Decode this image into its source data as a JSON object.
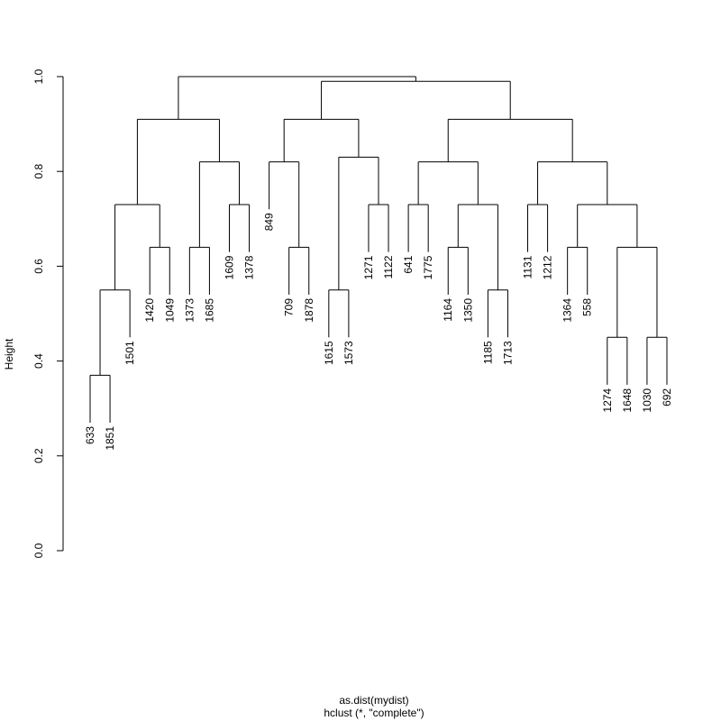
{
  "chart_data": {
    "type": "dendrogram",
    "y_label": "Height",
    "x_label": "as.dist(mydist)",
    "subtitle": "hclust (*, \"complete\")",
    "ylim": [
      0,
      1
    ],
    "yticks": [
      {
        "value": 0,
        "label": "0.0"
      },
      {
        "value": 0.2,
        "label": "0.2"
      },
      {
        "value": 0.4,
        "label": "0.4"
      },
      {
        "value": 0.6,
        "label": "0.6"
      },
      {
        "value": 0.8,
        "label": "0.8"
      },
      {
        "value": 1,
        "label": "1.0"
      }
    ],
    "color": "#000000",
    "tree": {
      "height": 1.0,
      "children": [
        {
          "height": 0.91,
          "children": [
            {
              "height": 0.73,
              "children": [
                {
                  "height": 0.55,
                  "children": [
                    {
                      "height": 0.37,
                      "children": [
                        {
                          "label": "633"
                        },
                        {
                          "label": "1851"
                        }
                      ]
                    },
                    {
                      "label": "1501"
                    }
                  ]
                },
                {
                  "height": 0.64,
                  "children": [
                    {
                      "label": "1420"
                    },
                    {
                      "label": "1049"
                    }
                  ]
                }
              ]
            },
            {
              "height": 0.82,
              "children": [
                {
                  "height": 0.64,
                  "children": [
                    {
                      "label": "1373"
                    },
                    {
                      "label": "1685"
                    }
                  ]
                },
                {
                  "height": 0.73,
                  "children": [
                    {
                      "label": "1609"
                    },
                    {
                      "label": "1378"
                    }
                  ]
                }
              ]
            }
          ]
        },
        {
          "height": 0.99,
          "children": [
            {
              "height": 0.91,
              "children": [
                {
                  "height": 0.82,
                  "children": [
                    {
                      "label": "849"
                    },
                    {
                      "height": 0.64,
                      "children": [
                        {
                          "label": "709"
                        },
                        {
                          "label": "1878"
                        }
                      ]
                    }
                  ]
                },
                {
                  "height": 0.83,
                  "children": [
                    {
                      "height": 0.55,
                      "children": [
                        {
                          "label": "1615"
                        },
                        {
                          "label": "1573"
                        }
                      ]
                    },
                    {
                      "height": 0.73,
                      "children": [
                        {
                          "label": "1271"
                        },
                        {
                          "label": "1122"
                        }
                      ]
                    }
                  ]
                }
              ]
            },
            {
              "height": 0.91,
              "children": [
                {
                  "height": 0.82,
                  "children": [
                    {
                      "height": 0.73,
                      "children": [
                        {
                          "label": "641"
                        },
                        {
                          "label": "1775"
                        }
                      ]
                    },
                    {
                      "height": 0.73,
                      "children": [
                        {
                          "height": 0.64,
                          "children": [
                            {
                              "label": "1164"
                            },
                            {
                              "label": "1350"
                            }
                          ]
                        },
                        {
                          "height": 0.55,
                          "children": [
                            {
                              "label": "1185"
                            },
                            {
                              "label": "1713"
                            }
                          ]
                        }
                      ]
                    }
                  ]
                },
                {
                  "height": 0.82,
                  "children": [
                    {
                      "height": 0.73,
                      "children": [
                        {
                          "label": "1131"
                        },
                        {
                          "label": "1212"
                        }
                      ]
                    },
                    {
                      "height": 0.73,
                      "children": [
                        {
                          "height": 0.64,
                          "children": [
                            {
                              "label": "1364"
                            },
                            {
                              "label": "558"
                            }
                          ]
                        },
                        {
                          "height": 0.64,
                          "children": [
                            {
                              "height": 0.45,
                              "children": [
                                {
                                  "label": "1274"
                                },
                                {
                                  "label": "1648"
                                }
                              ]
                            },
                            {
                              "height": 0.45,
                              "children": [
                                {
                                  "label": "1030"
                                },
                                {
                                  "label": "692"
                                }
                              ]
                            }
                          ]
                        }
                      ]
                    }
                  ]
                }
              ]
            }
          ]
        }
      ]
    }
  }
}
